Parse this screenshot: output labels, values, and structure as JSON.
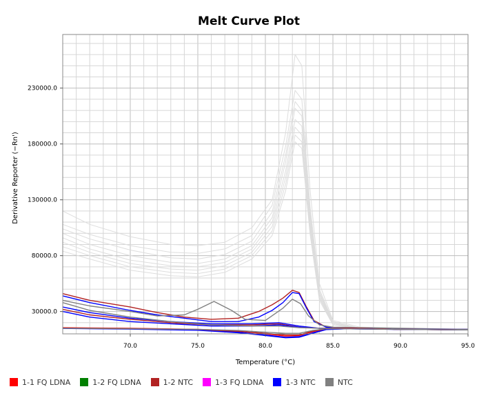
{
  "chart_data": {
    "type": "line",
    "title": "Melt Curve Plot",
    "xlabel": "Temperature (°C)",
    "ylabel": "Derivative Reporter (−Rn')",
    "xlim": [
      65.0,
      95.0
    ],
    "ylim": [
      10000,
      278000
    ],
    "x_ticks": [
      70.0,
      75.0,
      80.0,
      85.0,
      90.0,
      95.0
    ],
    "x_tick_labels": [
      "70.0",
      "75.0",
      "80.0",
      "85.0",
      "90.0",
      "95.0"
    ],
    "y_ticks": [
      30000,
      80000,
      130000,
      180000,
      230000
    ],
    "y_tick_labels": [
      "30000.0",
      "80000.0",
      "130000.0",
      "180000.0",
      "230000.0"
    ],
    "grid": true,
    "legend_position": "bottom",
    "legend": [
      {
        "label": "1-1 FQ LDNA",
        "color": "#ff0000"
      },
      {
        "label": "1-2 FQ LDNA",
        "color": "#008000"
      },
      {
        "label": "1-2 NTC",
        "color": "#b22222"
      },
      {
        "label": "1-3 FQ LDNA",
        "color": "#ff00ff"
      },
      {
        "label": "1-3 NTC",
        "color": "#0000ff"
      },
      {
        "label": "NTC",
        "color": "#808080"
      }
    ],
    "series": [
      {
        "color": "#dddddd",
        "x": [
          65,
          67,
          70,
          73,
          75,
          77,
          79,
          80.5,
          81.5,
          82.2,
          82.7,
          83.3,
          84,
          85,
          87,
          95
        ],
        "y": [
          120000,
          108000,
          97000,
          90000,
          89000,
          92000,
          105000,
          130000,
          190000,
          260000,
          250000,
          140000,
          55000,
          22000,
          16000,
          14000
        ]
      },
      {
        "color": "#dddddd",
        "x": [
          65,
          67,
          70,
          73,
          75,
          77,
          79,
          80.5,
          81.5,
          82.2,
          82.7,
          83.3,
          84,
          85,
          87,
          95
        ],
        "y": [
          108000,
          99000,
          89000,
          83000,
          82000,
          86000,
          98000,
          125000,
          178000,
          228000,
          220000,
          125000,
          50000,
          21000,
          15000,
          14000
        ]
      },
      {
        "color": "#dddddd",
        "x": [
          65,
          67,
          70,
          73,
          75,
          77,
          79,
          80.5,
          81.5,
          82.2,
          82.7,
          83.3,
          84,
          85,
          87,
          95
        ],
        "y": [
          104000,
          95000,
          85000,
          78000,
          77000,
          81000,
          93000,
          119000,
          170000,
          218000,
          210000,
          120000,
          48000,
          20000,
          15000,
          14000
        ]
      },
      {
        "color": "#dddddd",
        "x": [
          65,
          67,
          70,
          73,
          75,
          77,
          79,
          80.5,
          81.5,
          82.2,
          82.7,
          83.3,
          84,
          85,
          87,
          95
        ],
        "y": [
          100000,
          90000,
          80000,
          74000,
          73000,
          77000,
          89000,
          114000,
          164000,
          212000,
          205000,
          116000,
          46000,
          20000,
          15000,
          14000
        ]
      },
      {
        "color": "#dddddd",
        "x": [
          65,
          67,
          70,
          73,
          75,
          77,
          79,
          80.5,
          81.5,
          82.2,
          82.7,
          83.3,
          84,
          85,
          87,
          95
        ],
        "y": [
          96000,
          86000,
          76000,
          71000,
          70000,
          74000,
          86000,
          110000,
          156000,
          202000,
          196000,
          112000,
          45000,
          19000,
          15000,
          14000
        ]
      },
      {
        "color": "#dddddd",
        "x": [
          65,
          67,
          70,
          73,
          75,
          77,
          79,
          80.5,
          81.5,
          82.2,
          82.7,
          83.3,
          84,
          85,
          87,
          95
        ],
        "y": [
          92000,
          83000,
          73000,
          68000,
          67000,
          71000,
          83000,
          106000,
          150000,
          195000,
          188000,
          108000,
          43000,
          19000,
          15000,
          14000
        ]
      },
      {
        "color": "#dddddd",
        "x": [
          65,
          67,
          70,
          73,
          75,
          77,
          79,
          80.5,
          81.5,
          82.2,
          82.7,
          83.3,
          84,
          85,
          87,
          95
        ],
        "y": [
          88000,
          80000,
          70000,
          65000,
          64000,
          68000,
          80000,
          102000,
          144000,
          188000,
          182000,
          104000,
          42000,
          18000,
          15000,
          14000
        ]
      },
      {
        "color": "#dddddd",
        "x": [
          65,
          67,
          70,
          73,
          75,
          77,
          79,
          80.5,
          81.5,
          82.2,
          82.7,
          83.3,
          84,
          85,
          87,
          95
        ],
        "y": [
          84000,
          77000,
          67000,
          62000,
          61000,
          65000,
          77000,
          98000,
          138000,
          182000,
          176000,
          100000,
          40000,
          18000,
          15000,
          14000
        ]
      },
      {
        "color": "#b22222",
        "x": [
          65,
          67,
          70,
          72,
          74,
          76,
          78,
          79.5,
          80.5,
          81.3,
          82,
          82.5,
          83,
          83.6,
          84.5,
          86,
          90,
          95
        ],
        "y": [
          46000,
          40000,
          34000,
          29000,
          25000,
          23000,
          24000,
          30000,
          36000,
          42000,
          49000,
          47000,
          35000,
          22000,
          16000,
          15000,
          14000,
          14000
        ]
      },
      {
        "color": "#0000ff",
        "x": [
          65,
          67,
          70,
          72,
          74,
          76,
          78,
          79.5,
          80.5,
          81.3,
          82,
          82.5,
          83,
          83.6,
          84.5,
          86,
          90,
          95
        ],
        "y": [
          44000,
          38000,
          31000,
          27000,
          24000,
          21000,
          21000,
          25000,
          31000,
          38000,
          47000,
          46000,
          34000,
          21000,
          16000,
          15000,
          14000,
          14000
        ]
      },
      {
        "color": "#808080",
        "x": [
          65,
          67,
          70,
          72,
          74,
          75,
          76.2,
          77.5,
          78.5,
          80,
          81.3,
          82,
          82.6,
          83.2,
          84,
          85,
          90,
          95
        ],
        "y": [
          40000,
          35000,
          30000,
          26000,
          27000,
          32000,
          39000,
          31000,
          23000,
          22000,
          33000,
          41000,
          37000,
          26000,
          18000,
          16000,
          15000,
          14000
        ]
      },
      {
        "color": "#0000ff",
        "x": [
          65,
          67,
          70,
          73,
          76,
          79,
          81,
          82.5,
          84,
          86,
          90,
          95
        ],
        "y": [
          34000,
          29000,
          24000,
          21000,
          19000,
          19000,
          20000,
          17000,
          15000,
          15000,
          14000,
          14000
        ]
      },
      {
        "color": "#b22222",
        "x": [
          65,
          67,
          70,
          73,
          76,
          79,
          81,
          82.5,
          84,
          86,
          90,
          95
        ],
        "y": [
          32000,
          27000,
          23000,
          20000,
          18000,
          18000,
          19000,
          16000,
          15000,
          15000,
          14000,
          14000
        ]
      },
      {
        "color": "#0000ff",
        "x": [
          65,
          67,
          70,
          73,
          76,
          79,
          81,
          82.5,
          84,
          86,
          90,
          95
        ],
        "y": [
          30000,
          25000,
          21000,
          19000,
          17000,
          17000,
          18000,
          16000,
          15000,
          15000,
          14000,
          14000
        ]
      },
      {
        "color": "#808080",
        "x": [
          65,
          67,
          70,
          73,
          76,
          79,
          81,
          82.5,
          84,
          86,
          90,
          95
        ],
        "y": [
          38000,
          31000,
          25000,
          21000,
          18000,
          17000,
          17000,
          15500,
          15000,
          15000,
          14000,
          14000
        ]
      },
      {
        "color": "#0000ff",
        "x": [
          65,
          70,
          75,
          78,
          80,
          81.5,
          82.5,
          83.5,
          84.5,
          86,
          90,
          95
        ],
        "y": [
          15000,
          14500,
          13500,
          11500,
          9000,
          7000,
          7500,
          11000,
          14000,
          14500,
          14000,
          13500
        ]
      },
      {
        "color": "#ff0000",
        "x": [
          65,
          70,
          75,
          78,
          80,
          81.5,
          82.5,
          83.5,
          84.5,
          86,
          90,
          95
        ],
        "y": [
          15500,
          15000,
          14000,
          12500,
          10000,
          8000,
          8500,
          12000,
          14500,
          15000,
          14000,
          13500
        ]
      },
      {
        "color": "#b22222",
        "x": [
          65,
          70,
          75,
          78,
          80,
          81.5,
          82.5,
          83.5,
          84.5,
          86,
          90,
          95
        ],
        "y": [
          15200,
          14800,
          13800,
          12200,
          10500,
          9000,
          9000,
          12500,
          14500,
          14800,
          14000,
          13500
        ]
      },
      {
        "color": "#0000ff",
        "x": [
          65,
          70,
          75,
          78,
          80,
          81.5,
          82.5,
          83.5,
          84.5,
          86,
          90,
          95
        ],
        "y": [
          14800,
          14200,
          13200,
          11000,
          8500,
          6500,
          7000,
          10500,
          13800,
          14500,
          14000,
          13500
        ]
      },
      {
        "color": "#808080",
        "x": [
          65,
          70,
          75,
          78,
          80,
          81.5,
          82.5,
          83.5,
          84.5,
          86,
          90,
          95
        ],
        "y": [
          15000,
          14500,
          14000,
          13000,
          11500,
          10500,
          10500,
          13000,
          14500,
          14500,
          14000,
          13500
        ]
      }
    ]
  }
}
